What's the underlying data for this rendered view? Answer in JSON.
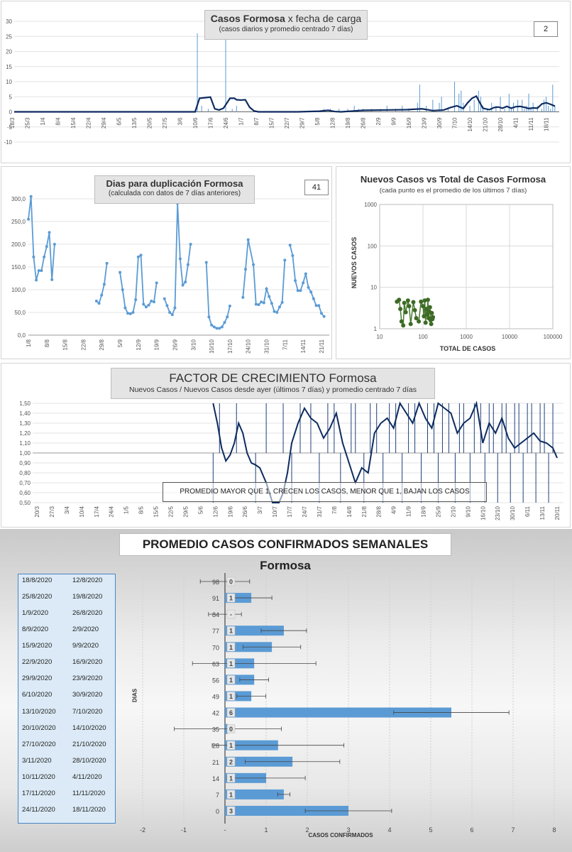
{
  "chart_data": [
    {
      "type": "line",
      "title": "Casos Formosa",
      "title_suffix": "x fecha de carga",
      "subtitle": "(casos diarios y promedio  centrado 7 días)",
      "badge": "2",
      "ylim": [
        -10,
        30
      ],
      "y_ticks": [
        "30",
        "25",
        "20",
        "15",
        "10",
        "5",
        "0",
        "-5",
        "-10"
      ],
      "x_ticks": [
        "18/3",
        "25/3",
        "1/4",
        "8/4",
        "15/4",
        "22/4",
        "29/4",
        "6/5",
        "13/5",
        "20/5",
        "27/5",
        "3/6",
        "10/6",
        "17/6",
        "24/6",
        "1/7",
        "8/7",
        "15/7",
        "22/7",
        "29/7",
        "5/8",
        "12/8",
        "19/8",
        "26/8",
        "2/9",
        "9/9",
        "16/9",
        "23/9",
        "30/9",
        "7/10",
        "14/10",
        "21/10",
        "28/10",
        "4/11",
        "11/11",
        "18/11"
      ],
      "series": [
        {
          "kind": "daily_bars",
          "x_day": [
            84,
            86,
            89,
            97,
            100,
            102,
            142,
            145,
            149,
            153,
            156,
            158,
            160,
            164,
            168,
            171,
            175,
            178,
            181,
            185,
            186,
            189,
            192,
            195,
            196,
            199,
            202,
            204,
            205,
            206,
            209,
            211,
            213,
            214,
            215,
            217,
            219,
            221,
            223,
            225,
            227,
            228,
            229,
            231,
            233,
            234,
            235,
            236,
            237,
            238,
            240,
            242,
            243,
            244,
            245,
            246,
            247,
            248
          ],
          "values": [
            26,
            2,
            1,
            26,
            1,
            2,
            1,
            1,
            1,
            1,
            2,
            1,
            1,
            1,
            1,
            2,
            1,
            2,
            1,
            3,
            9,
            2,
            4,
            3,
            5,
            1,
            10,
            6,
            7,
            3,
            2,
            4,
            7,
            5,
            2,
            1,
            3,
            2,
            5,
            1,
            6,
            1,
            3,
            4,
            4,
            1,
            2,
            6,
            1,
            3,
            2,
            1,
            4,
            5,
            2,
            1,
            9,
            2
          ]
        },
        {
          "kind": "avg_7d",
          "x_day": [
            0,
            83,
            85,
            89,
            90,
            92,
            94,
            96,
            99,
            101,
            102,
            104,
            106,
            108,
            110,
            112,
            130,
            140,
            144,
            147,
            150,
            160,
            170,
            180,
            187,
            192,
            197,
            200,
            203,
            206,
            208,
            210,
            212,
            213,
            215,
            218,
            220,
            222,
            224,
            226,
            228,
            230,
            232,
            234,
            236,
            238,
            240,
            242,
            244,
            246,
            248
          ],
          "values": [
            0,
            0,
            4.5,
            4.8,
            4.9,
            1,
            0.6,
            1.2,
            4.5,
            4.5,
            4,
            3.9,
            4,
            1.5,
            0.3,
            0,
            0,
            0.2,
            0.5,
            0.1,
            0,
            0.5,
            0.6,
            0.7,
            1,
            0.4,
            0.6,
            1.4,
            2,
            1.1,
            3,
            4.5,
            5.2,
            3.8,
            1.2,
            0.7,
            1.4,
            1.6,
            1.2,
            1.8,
            1.2,
            1.7,
            1.8,
            1.5,
            1.1,
            1.3,
            1.2,
            2.6,
            3,
            2.5,
            1.9
          ]
        }
      ]
    },
    {
      "type": "line",
      "title": "Dias para duplicación  Formosa",
      "subtitle": "(calculada con datos de 7 días anteriores)",
      "badge": "41",
      "ylim": [
        0,
        300
      ],
      "y_ticks": [
        "300,0",
        "250,0",
        "200,0",
        "150,0",
        "100,0",
        "50,0",
        "0,0"
      ],
      "x_ticks": [
        "1/8",
        "8/8",
        "15/8",
        "22/8",
        "29/8",
        "5/9",
        "12/9",
        "19/9",
        "26/9",
        "3/10",
        "10/10",
        "17/10",
        "24/10",
        "31/10",
        "7/11",
        "14/11",
        "21/11"
      ],
      "segments": [
        [
          [
            0,
            255
          ],
          [
            1,
            305
          ],
          [
            2,
            172
          ],
          [
            3,
            121
          ],
          [
            4,
            142
          ],
          [
            5,
            142
          ],
          [
            6,
            172
          ],
          [
            7,
            195
          ],
          [
            8,
            226
          ],
          [
            9,
            122
          ],
          [
            10,
            200
          ]
        ],
        [
          [
            26,
            75
          ],
          [
            27,
            70
          ],
          [
            28,
            88
          ],
          [
            29,
            112
          ],
          [
            30,
            158
          ]
        ],
        [
          [
            35,
            138
          ],
          [
            36,
            100
          ],
          [
            37,
            60
          ],
          [
            38,
            48
          ],
          [
            39,
            47
          ],
          [
            40,
            50
          ],
          [
            41,
            78
          ],
          [
            42,
            172
          ],
          [
            43,
            176
          ],
          [
            44,
            68
          ],
          [
            45,
            62
          ],
          [
            46,
            66
          ],
          [
            47,
            75
          ],
          [
            48,
            73
          ],
          [
            49,
            115
          ]
        ],
        [
          [
            52,
            80
          ],
          [
            53,
            65
          ],
          [
            54,
            50
          ],
          [
            55,
            45
          ],
          [
            56,
            60
          ],
          [
            57,
            290
          ],
          [
            58,
            168
          ],
          [
            59,
            110
          ],
          [
            60,
            117
          ],
          [
            61,
            155
          ],
          [
            62,
            200
          ]
        ],
        [
          [
            68,
            160
          ],
          [
            69,
            40
          ],
          [
            70,
            22
          ],
          [
            71,
            18
          ],
          [
            72,
            15
          ],
          [
            73,
            15
          ],
          [
            74,
            18
          ],
          [
            75,
            28
          ],
          [
            76,
            40
          ],
          [
            77,
            64
          ]
        ],
        [
          [
            82,
            83
          ],
          [
            83,
            145
          ],
          [
            84,
            210
          ],
          [
            86,
            155
          ],
          [
            87,
            68
          ],
          [
            88,
            67
          ],
          [
            89,
            73
          ],
          [
            90,
            71
          ],
          [
            91,
            102
          ],
          [
            92,
            85
          ],
          [
            93,
            70
          ],
          [
            94,
            52
          ],
          [
            95,
            50
          ],
          [
            96,
            62
          ],
          [
            97,
            72
          ],
          [
            98,
            165
          ]
        ],
        [
          [
            100,
            198
          ],
          [
            101,
            175
          ],
          [
            102,
            120
          ],
          [
            103,
            98
          ],
          [
            104,
            98
          ],
          [
            105,
            115
          ],
          [
            106,
            135
          ],
          [
            107,
            105
          ],
          [
            108,
            95
          ],
          [
            109,
            80
          ],
          [
            110,
            65
          ],
          [
            111,
            65
          ],
          [
            112,
            48
          ],
          [
            113,
            41
          ]
        ]
      ]
    },
    {
      "type": "scatter",
      "title": "Nuevos Casos vs Total de Casos Formosa",
      "subtitle": "(cada punto es el promedio de los últimos 7 días)",
      "xlabel": "TOTAL DE CASOS",
      "ylabel": "NUEVOS CASOS",
      "x_scale": "log",
      "y_scale": "log",
      "x_ticks": [
        "10",
        "100",
        "1000",
        "10000",
        "100000"
      ],
      "y_ticks": [
        "1000",
        "100",
        "10",
        "1"
      ],
      "points": [
        [
          25,
          4.5
        ],
        [
          28,
          5
        ],
        [
          30,
          3
        ],
        [
          32,
          1.5
        ],
        [
          35,
          1.2
        ],
        [
          37,
          4.2
        ],
        [
          40,
          2.5
        ],
        [
          45,
          4.8
        ],
        [
          48,
          3.5
        ],
        [
          52,
          1.3
        ],
        [
          60,
          4.4
        ],
        [
          65,
          2.8
        ],
        [
          70,
          1.8
        ],
        [
          80,
          1.5
        ],
        [
          90,
          4.5
        ],
        [
          100,
          3.5
        ],
        [
          105,
          2
        ],
        [
          110,
          4.8
        ],
        [
          115,
          1.4
        ],
        [
          120,
          3
        ],
        [
          125,
          2.2
        ],
        [
          130,
          5
        ],
        [
          135,
          1.8
        ],
        [
          140,
          2.6
        ],
        [
          145,
          3.3
        ],
        [
          150,
          1.6
        ],
        [
          155,
          1.3
        ],
        [
          160,
          2.4
        ],
        [
          165,
          1.7
        ],
        [
          170,
          1.9
        ]
      ]
    },
    {
      "type": "line",
      "title": "FACTOR DE CRECIMIENTO",
      "title_suffix": "Formosa",
      "subtitle": "Nuevos Casos  / Nuevos Casos desde ayer (últimos 7 días) y promedio  centrado 7 días",
      "note": "PROMEDIO MAYOR QUE 1, CRECEN LOS CASOS, MENOR QUE 1, BAJAN LOS CASOS",
      "ylim": [
        0.5,
        1.5
      ],
      "y_ticks": [
        "1,50",
        "1,40",
        "1,30",
        "1,20",
        "1,10",
        "1,00",
        "0,90",
        "0,80",
        "0,70",
        "0,60",
        "0,50"
      ],
      "x_ticks": [
        "20/3",
        "27/3",
        "3/4",
        "10/4",
        "17/4",
        "24/4",
        "1/5",
        "8/5",
        "15/5",
        "22/5",
        "29/5",
        "5/6",
        "12/6",
        "19/6",
        "26/6",
        "3/7",
        "10/7",
        "17/7",
        "24/7",
        "31/7",
        "7/8",
        "14/8",
        "21/8",
        "28/8",
        "4/9",
        "11/9",
        "18/9",
        "25/9",
        "2/10",
        "9/10",
        "16/10",
        "23/10",
        "30/10",
        "6/11",
        "13/11",
        "20/11"
      ],
      "series": [
        {
          "kind": "avg_7d",
          "x_day": [
            85,
            87,
            89,
            91,
            93,
            95,
            97,
            99,
            101,
            103,
            105,
            107,
            110,
            113,
            116,
            118,
            120,
            122,
            125,
            128,
            131,
            134,
            137,
            140,
            143,
            146,
            149,
            152,
            155,
            158,
            161,
            164,
            167,
            170,
            173,
            176,
            179,
            182,
            185,
            188,
            191,
            194,
            197,
            200,
            203,
            206,
            209,
            212,
            215,
            218,
            221,
            224,
            227,
            230,
            233,
            236,
            239,
            242,
            245,
            247
          ],
          "values": [
            1.5,
            1.3,
            1.05,
            0.92,
            0.98,
            1.1,
            1.3,
            1.2,
            1.0,
            0.9,
            0.88,
            0.85,
            0.7,
            0.5,
            0.5,
            0.6,
            0.8,
            1.1,
            1.3,
            1.45,
            1.35,
            1.3,
            1.15,
            1.25,
            1.4,
            1.1,
            0.9,
            0.7,
            0.85,
            0.8,
            1.2,
            1.3,
            1.35,
            1.25,
            1.5,
            1.4,
            1.3,
            1.5,
            1.35,
            1.25,
            1.5,
            1.45,
            1.4,
            1.2,
            1.3,
            1.35,
            1.5,
            1.1,
            1.3,
            1.2,
            1.35,
            1.15,
            1.05,
            1.1,
            1.15,
            1.2,
            1.12,
            1.1,
            1.05,
            0.95
          ]
        }
      ]
    },
    {
      "type": "bar",
      "orientation": "horizontal",
      "title": "PROMEDIO CASOS CONFIRMADOS SEMANALES",
      "title_suffix": "Formosa",
      "xlabel": "CASOS CONFIRMADOS",
      "ylabel": "DIAS",
      "xlim": [
        -2,
        8
      ],
      "x_ticks": [
        "-2",
        "-1",
        "-",
        "1",
        "2",
        "3",
        "4",
        "5",
        "6",
        "7",
        "8"
      ],
      "categories": [
        "98",
        "91",
        "84",
        "77",
        "70",
        "63",
        "56",
        "49",
        "42",
        "35",
        "28",
        "21",
        "14",
        "7",
        "0"
      ],
      "date_ranges": [
        [
          "18/8/2020",
          "12/8/2020"
        ],
        [
          "25/8/2020",
          "19/8/2020"
        ],
        [
          "1/9/2020",
          "26/8/2020"
        ],
        [
          "8/9/2020",
          "2/9/2020"
        ],
        [
          "15/9/2020",
          "9/9/2020"
        ],
        [
          "22/9/2020",
          "16/9/2020"
        ],
        [
          "29/9/2020",
          "23/9/2020"
        ],
        [
          "6/10/2020",
          "30/9/2020"
        ],
        [
          "13/10/2020",
          "7/10/2020"
        ],
        [
          "20/10/2020",
          "14/10/2020"
        ],
        [
          "27/10/2020",
          "21/10/2020"
        ],
        [
          "3/11/2020",
          "28/10/2020"
        ],
        [
          "10/11/2020",
          "4/11/2020"
        ],
        [
          "17/11/2020",
          "11/11/2020"
        ],
        [
          "24/11/2020",
          "18/11/2020"
        ]
      ],
      "values": [
        0.0,
        0.64,
        0.0,
        1.43,
        1.14,
        0.71,
        0.71,
        0.64,
        5.5,
        0.07,
        1.29,
        1.64,
        1.0,
        1.43,
        3.0
      ],
      "value_labels": [
        "0",
        "1",
        "-",
        "1",
        "1",
        "1",
        "1",
        "1",
        "6",
        "0",
        "1",
        "2",
        "1",
        "1",
        "3"
      ],
      "error": [
        0.6,
        0.5,
        0.4,
        0.55,
        0.7,
        1.5,
        0.35,
        0.35,
        1.4,
        1.3,
        1.6,
        1.15,
        0.95,
        0.15,
        1.05
      ]
    }
  ]
}
